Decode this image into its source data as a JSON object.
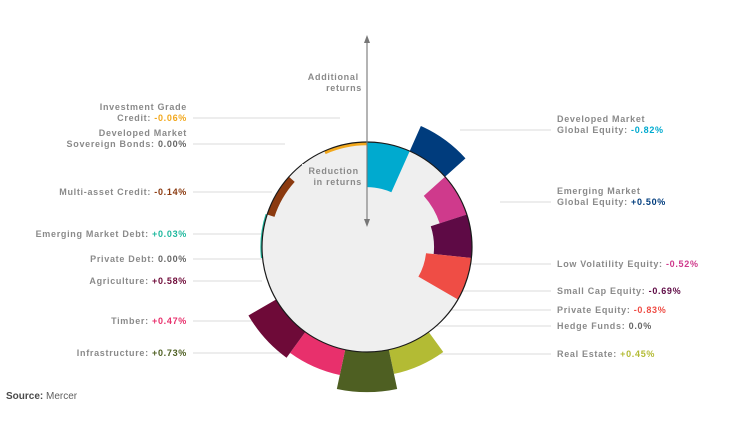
{
  "chart_data": {
    "type": "polar-area",
    "axis": {
      "top_label": [
        "Additional",
        "returns"
      ],
      "inner_label": [
        "Reduction",
        "in returns"
      ]
    },
    "sectors": [
      {
        "name": "Developed Market Global Equity",
        "label": [
          "Developed Market",
          "Global Equity:"
        ],
        "value": -0.82,
        "value_text": "-0.82%",
        "color": "#00aacf",
        "side": "right"
      },
      {
        "name": "Emerging Market Global Equity",
        "label": [
          "Emerging Market",
          "Global Equity:"
        ],
        "value": 0.5,
        "value_text": "+0.50%",
        "color": "#003c7d",
        "side": "right"
      },
      {
        "name": "Low Volatility Equity",
        "label": [
          "Low Volatility Equity:"
        ],
        "value": -0.52,
        "value_text": "-0.52%",
        "color": "#cf3a8c",
        "side": "right"
      },
      {
        "name": "Small Cap Equity",
        "label": [
          "Small Cap Equity:"
        ],
        "value": -0.69,
        "value_text": "-0.69%",
        "color": "#5e0a45",
        "side": "right"
      },
      {
        "name": "Private Equity",
        "label": [
          "Private Equity:"
        ],
        "value": -0.83,
        "value_text": "-0.83%",
        "color": "#ef4d45",
        "side": "right"
      },
      {
        "name": "Hedge Funds",
        "label": [
          "Hedge Funds:"
        ],
        "value": 0.0,
        "value_text": "0.0%",
        "color": "#666666",
        "side": "right"
      },
      {
        "name": "Real Estate",
        "label": [
          "Real Estate:"
        ],
        "value": 0.45,
        "value_text": "+0.45%",
        "color": "#b3bb34",
        "side": "right"
      },
      {
        "name": "Infrastructure",
        "label": [
          "Infrastructure:"
        ],
        "value": 0.73,
        "value_text": "+0.73%",
        "color": "#4e5f22",
        "side": "left"
      },
      {
        "name": "Timber",
        "label": [
          "Timber:"
        ],
        "value": 0.47,
        "value_text": "+0.47%",
        "color": "#e8306c",
        "side": "left"
      },
      {
        "name": "Agriculture",
        "label": [
          "Agriculture:"
        ],
        "value": 0.58,
        "value_text": "+0.58%",
        "color": "#6e0a38",
        "side": "left"
      },
      {
        "name": "Private Debt",
        "label": [
          "Private Debt:"
        ],
        "value": 0.0,
        "value_text": "0.00%",
        "color": "#666666",
        "side": "left"
      },
      {
        "name": "Emerging Market Debt",
        "label": [
          "Emerging Market Debt:"
        ],
        "value": 0.03,
        "value_text": "+0.03%",
        "color": "#1fb89e",
        "side": "left"
      },
      {
        "name": "Multi-asset Credit",
        "label": [
          "Multi-asset Credit:"
        ],
        "value": -0.14,
        "value_text": "-0.14%",
        "color": "#8b3a10",
        "side": "left"
      },
      {
        "name": "Developed Market Sovereign Bonds",
        "label": [
          "Developed Market",
          "Sovereign Bonds:"
        ],
        "value": 0.0,
        "value_text": "0.00%",
        "color": "#666666",
        "side": "left"
      },
      {
        "name": "Investment Grade Credit",
        "label": [
          "Investment Grade",
          "Credit:"
        ],
        "value": -0.06,
        "value_text": "-0.06%",
        "color": "#f2a81d",
        "side": "left"
      }
    ]
  },
  "source": {
    "label": "Source:",
    "text": "Mercer"
  }
}
